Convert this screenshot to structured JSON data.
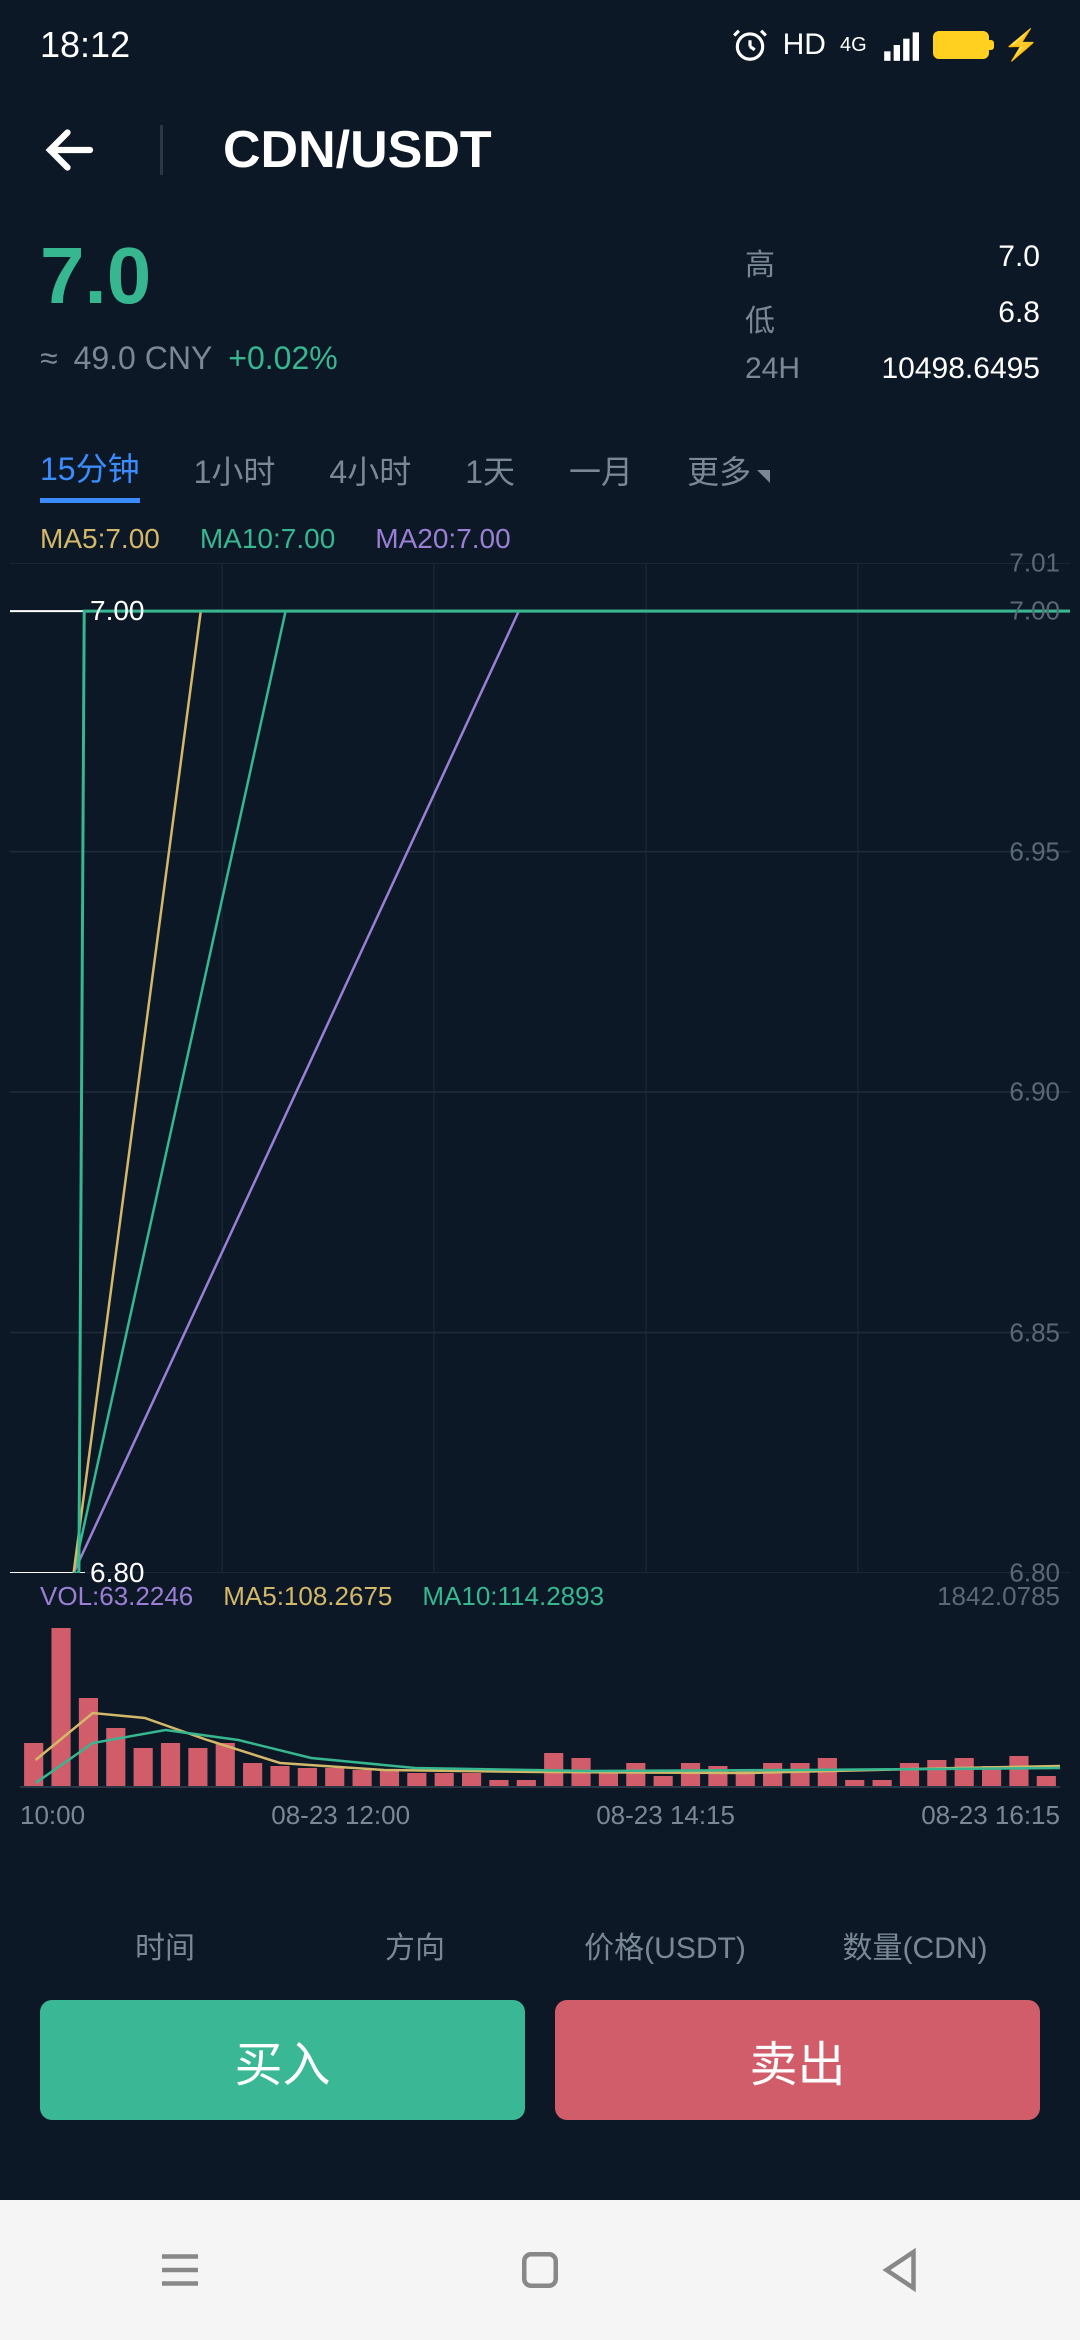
{
  "statusBar": {
    "time": "18:12",
    "hd": "HD",
    "network": "4G"
  },
  "header": {
    "pair": "CDN/USDT"
  },
  "price": {
    "current": "7.0",
    "approx": "≈",
    "fiat": "49.0 CNY",
    "change": "+0.02%",
    "stats": {
      "highLabel": "高",
      "highValue": "7.0",
      "lowLabel": "低",
      "lowValue": "6.8",
      "volLabel": "24H",
      "volValue": "10498.6495"
    }
  },
  "tabs": {
    "items": [
      "15分钟",
      "1小时",
      "4小时",
      "1天",
      "一月",
      "更多"
    ],
    "activeIndex": 0
  },
  "ma": {
    "ma5": "MA5:7.00",
    "ma10": "MA10:7.00",
    "ma20": "MA20:7.00"
  },
  "chart": {
    "ylim": [
      6.8,
      7.01
    ],
    "yticks": [
      {
        "v": 7.01,
        "label": "7.01"
      },
      {
        "v": 7.0,
        "label": "7.00",
        "tag": true,
        "tagColor": "#ffffff"
      },
      {
        "v": 6.95,
        "label": "6.95"
      },
      {
        "v": 6.9,
        "label": "6.90"
      },
      {
        "v": 6.85,
        "label": "6.85"
      },
      {
        "v": 6.8,
        "label": "6.80",
        "tag": true,
        "tagColor": "#ffffff"
      }
    ],
    "gridColor": "#1e2c3a",
    "lines": {
      "price": {
        "color": "#36b790",
        "points": [
          [
            0.06,
            6.8
          ],
          [
            0.065,
            6.8
          ],
          [
            0.07,
            7.0
          ],
          [
            1.0,
            7.0
          ]
        ]
      },
      "ma5": {
        "color": "#d4b86a",
        "points": [
          [
            0.06,
            6.8
          ],
          [
            0.18,
            7.0
          ],
          [
            1.0,
            7.0
          ]
        ]
      },
      "ma10": {
        "color": "#36b790",
        "points": [
          [
            0.06,
            6.8
          ],
          [
            0.26,
            7.0
          ],
          [
            1.0,
            7.0
          ]
        ]
      },
      "ma20": {
        "color": "#9a7fd4",
        "points": [
          [
            0.06,
            6.8
          ],
          [
            0.48,
            7.0
          ],
          [
            1.0,
            7.0
          ]
        ]
      }
    }
  },
  "volume": {
    "volLabel": "VOL:63.2246",
    "ma5": "MA5:108.2675",
    "ma10": "MA10:114.2893",
    "rightLabel": "1842.0785",
    "barColor": "#d25d6a",
    "bars": [
      45,
      160,
      90,
      60,
      40,
      45,
      40,
      45,
      25,
      22,
      20,
      20,
      18,
      18,
      15,
      15,
      15,
      8,
      8,
      35,
      30,
      15,
      25,
      12,
      25,
      22,
      18,
      25,
      25,
      30,
      8,
      8,
      25,
      28,
      30,
      22,
      32,
      12
    ],
    "ma5Line": {
      "color": "#d4b86a",
      "points": [
        [
          0.015,
          28
        ],
        [
          0.07,
          75
        ],
        [
          0.12,
          70
        ],
        [
          0.18,
          48
        ],
        [
          0.25,
          25
        ],
        [
          0.35,
          18
        ],
        [
          0.5,
          16
        ],
        [
          0.7,
          15
        ],
        [
          0.9,
          20
        ],
        [
          1.0,
          22
        ]
      ]
    },
    "ma10Line": {
      "color": "#36b790",
      "points": [
        [
          0.015,
          5
        ],
        [
          0.07,
          45
        ],
        [
          0.14,
          58
        ],
        [
          0.21,
          48
        ],
        [
          0.28,
          30
        ],
        [
          0.38,
          20
        ],
        [
          0.55,
          17
        ],
        [
          0.75,
          18
        ],
        [
          1.0,
          20
        ]
      ]
    }
  },
  "xaxis": {
    "labels": [
      "10:00",
      "08-23 12:00",
      "08-23 14:15",
      "08-23 16:15"
    ]
  },
  "tradeTable": {
    "cols": [
      "时间",
      "方向",
      "价格(USDT)",
      "数量(CDN)"
    ]
  },
  "buttons": {
    "buy": "买入",
    "sell": "卖出"
  },
  "colors": {
    "bg": "#0d1826",
    "green": "#36b790",
    "red": "#d25d6a",
    "muted": "#7a8896",
    "blue": "#3a8cff"
  }
}
